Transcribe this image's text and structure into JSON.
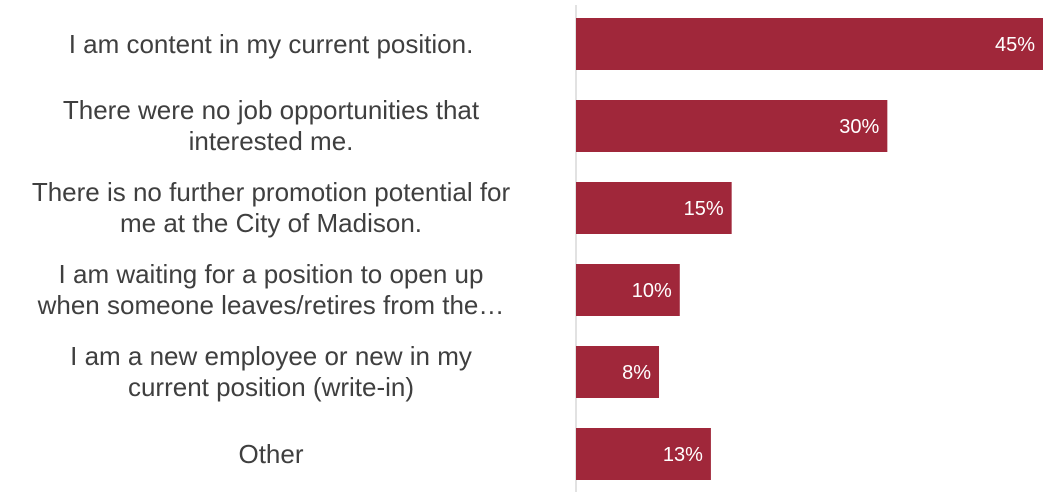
{
  "chart_data": {
    "type": "bar",
    "orientation": "horizontal",
    "categories": [
      [
        "I am content in my current position."
      ],
      [
        "There were no job opportunities that",
        "interested me."
      ],
      [
        "There is no further promotion potential for",
        "me at the City of Madison."
      ],
      [
        "I am waiting for a position to open up",
        "when someone leaves/retires from the…"
      ],
      [
        "I am a new employee or new in my",
        "current position (write-in)"
      ],
      [
        "Other"
      ]
    ],
    "values": [
      45,
      30,
      15,
      10,
      8,
      13
    ],
    "value_labels": [
      "45%",
      "30%",
      "15%",
      "10%",
      "8%",
      "13%"
    ],
    "xlim": [
      0,
      45
    ],
    "grid": false,
    "bar_color": "#a0273a",
    "axis_color": "#d9d9d9",
    "title": "",
    "xlabel": "",
    "ylabel": ""
  }
}
